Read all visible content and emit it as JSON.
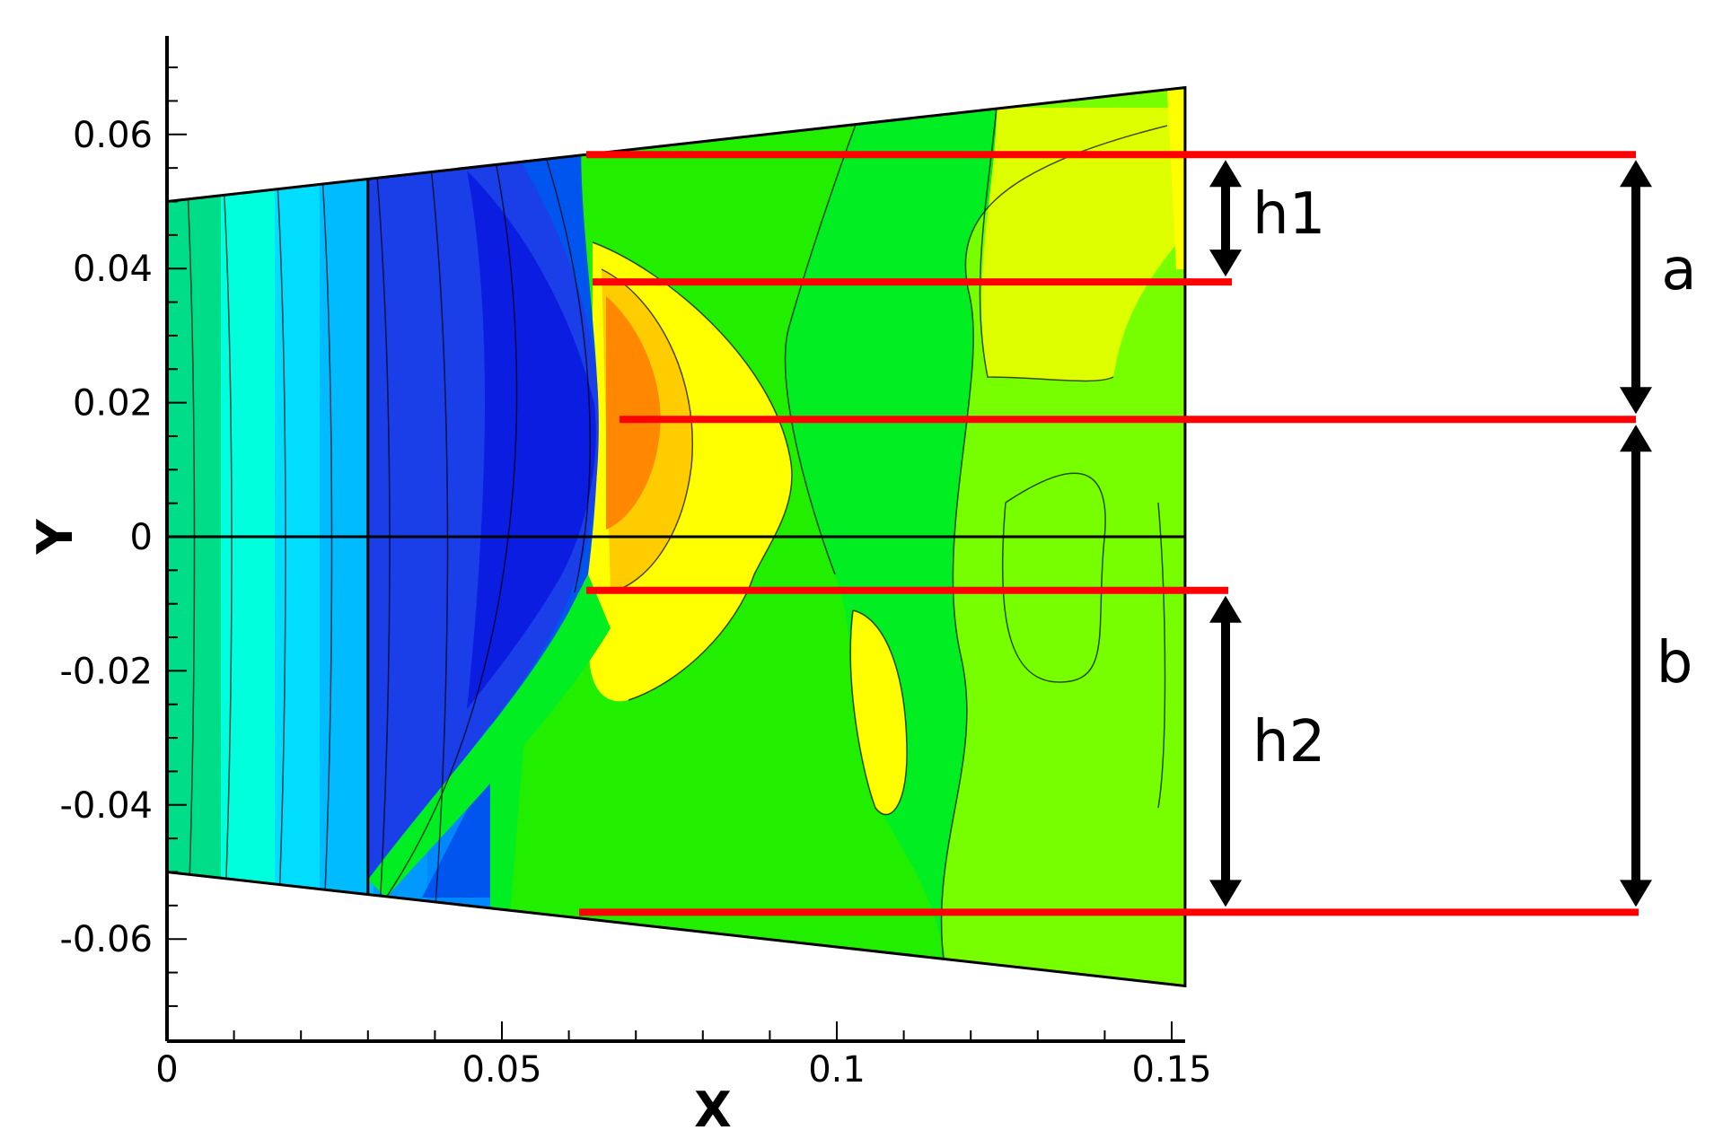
{
  "chart_data": {
    "type": "heatmap",
    "xlabel": "X",
    "ylabel": "Y",
    "xlim": [
      0,
      0.152
    ],
    "ylim": [
      -0.072,
      0.072
    ],
    "x_ticks": [
      {
        "value": 0,
        "label": "0"
      },
      {
        "value": 0.05,
        "label": "0.05"
      },
      {
        "value": 0.1,
        "label": "0.1"
      },
      {
        "value": 0.15,
        "label": "0.15"
      }
    ],
    "y_ticks": [
      {
        "value": 0.06,
        "label": "0.06"
      },
      {
        "value": 0.04,
        "label": "0.04"
      },
      {
        "value": 0.02,
        "label": "0.02"
      },
      {
        "value": 0,
        "label": "0"
      },
      {
        "value": -0.02,
        "label": "-0.02"
      },
      {
        "value": -0.04,
        "label": "-0.04"
      },
      {
        "value": -0.06,
        "label": "-0.06"
      }
    ],
    "domain_outline": {
      "x_start": 0,
      "x_end": 0.152,
      "top_y": [
        0.05,
        0.067
      ],
      "bottom_y": [
        -0.05,
        -0.067
      ]
    },
    "reference_lines": {
      "vertical_x": 0.03,
      "horizontal_y": 0
    },
    "contour_colors": [
      "#00dd88",
      "#00ffdd",
      "#00bbff",
      "#0088ff",
      "#0055ee",
      "#1a3fe8",
      "#0a1de0",
      "#00ee22",
      "#22ee00",
      "#77ff00",
      "#ddff00",
      "#ffff00",
      "#ffcc00",
      "#ff8800"
    ],
    "annotation_color": "#ff0000",
    "annotation_lines_y": [
      0.057,
      0.038,
      0.0175,
      -0.008,
      -0.056
    ],
    "dimensions": [
      {
        "label": "h1",
        "from_y": 0.057,
        "to_y": 0.038
      },
      {
        "label": "a",
        "from_y": 0.057,
        "to_y": 0.0175
      },
      {
        "label": "h2",
        "from_y": -0.008,
        "to_y": -0.056
      },
      {
        "label": "b",
        "from_y": 0.0175,
        "to_y": -0.056
      }
    ]
  }
}
